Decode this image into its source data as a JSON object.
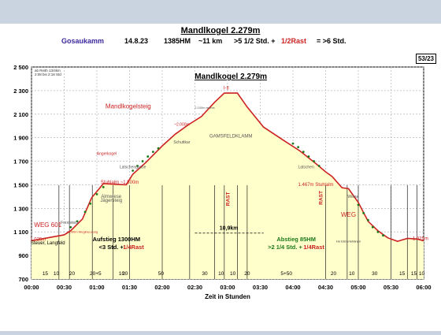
{
  "header": {
    "title": "Mandlkogel 2.279m",
    "region": "Gosaukamm",
    "date": "14.8.23",
    "elevation_gain": "1385HM",
    "distance": "~11 km",
    "time_part1": ">5 1/2 Std. +",
    "time_part2": "1/2Rast",
    "time_part3": "= >6 Std.",
    "page_ref": "53/23",
    "note1": "ab Reith 13/4km",
    "note2": "2:08 bis 2:18 Std"
  },
  "colors": {
    "profile_line": "#cc2222",
    "fill": "#ffffcc",
    "dots": "#1a7a1a",
    "background": "#ffffff",
    "page_bg": "#c9d4e0"
  },
  "chart_data": {
    "type": "area",
    "title": "Mandlkogel 2.279m",
    "xlabel": "Zeit in Stunden",
    "ylabel": "",
    "xlim": [
      0,
      6
    ],
    "ylim": [
      700,
      2500
    ],
    "x_ticks": [
      "00:00",
      "00:30",
      "01:00",
      "01:30",
      "02:00",
      "02:30",
      "03:00",
      "03:30",
      "04:00",
      "04:30",
      "05:00",
      "05:30",
      "06:00"
    ],
    "y_ticks": [
      "700",
      "900",
      "1 100",
      "1 300",
      "1 500",
      "1 700",
      "1 900",
      "2 100",
      "2 300",
      "2 500"
    ],
    "profile": [
      {
        "t": 0.0,
        "e": 1025
      },
      {
        "t": 0.15,
        "e": 1040
      },
      {
        "t": 0.35,
        "e": 1060
      },
      {
        "t": 0.5,
        "e": 1075
      },
      {
        "t": 0.6,
        "e": 1110
      },
      {
        "t": 0.78,
        "e": 1210
      },
      {
        "t": 0.92,
        "e": 1390
      },
      {
        "t": 1.1,
        "e": 1510
      },
      {
        "t": 1.25,
        "e": 1505
      },
      {
        "t": 1.45,
        "e": 1500
      },
      {
        "t": 1.55,
        "e": 1590
      },
      {
        "t": 1.75,
        "e": 1690
      },
      {
        "t": 2.0,
        "e": 1830
      },
      {
        "t": 2.2,
        "e": 1930
      },
      {
        "t": 2.4,
        "e": 2010
      },
      {
        "t": 2.6,
        "e": 2080
      },
      {
        "t": 2.8,
        "e": 2200
      },
      {
        "t": 2.95,
        "e": 2279
      },
      {
        "t": 3.15,
        "e": 2279
      },
      {
        "t": 3.3,
        "e": 2160
      },
      {
        "t": 3.55,
        "e": 1990
      },
      {
        "t": 3.85,
        "e": 1880
      },
      {
        "t": 4.1,
        "e": 1790
      },
      {
        "t": 4.35,
        "e": 1680
      },
      {
        "t": 4.5,
        "e": 1610
      },
      {
        "t": 4.6,
        "e": 1570
      },
      {
        "t": 4.75,
        "e": 1475
      },
      {
        "t": 4.85,
        "e": 1467
      },
      {
        "t": 5.0,
        "e": 1350
      },
      {
        "t": 5.15,
        "e": 1190
      },
      {
        "t": 5.3,
        "e": 1110
      },
      {
        "t": 5.45,
        "e": 1050
      },
      {
        "t": 5.6,
        "e": 1020
      },
      {
        "t": 5.75,
        "e": 1045
      },
      {
        "t": 5.9,
        "e": 1040
      },
      {
        "t": 6.0,
        "e": 1025
      }
    ],
    "dots": [
      {
        "t": 0.6,
        "e": 1140
      },
      {
        "t": 0.7,
        "e": 1190
      },
      {
        "t": 0.82,
        "e": 1270
      },
      {
        "t": 0.9,
        "e": 1340
      },
      {
        "t": 1.0,
        "e": 1420
      },
      {
        "t": 1.1,
        "e": 1480
      },
      {
        "t": 1.55,
        "e": 1620
      },
      {
        "t": 1.62,
        "e": 1660
      },
      {
        "t": 1.7,
        "e": 1700
      },
      {
        "t": 1.78,
        "e": 1740
      },
      {
        "t": 1.86,
        "e": 1780
      },
      {
        "t": 1.94,
        "e": 1810
      },
      {
        "t": 4.0,
        "e": 1850
      },
      {
        "t": 4.08,
        "e": 1820
      },
      {
        "t": 4.16,
        "e": 1780
      },
      {
        "t": 4.24,
        "e": 1740
      },
      {
        "t": 4.32,
        "e": 1700
      },
      {
        "t": 4.4,
        "e": 1660
      },
      {
        "t": 5.0,
        "e": 1330
      },
      {
        "t": 5.08,
        "e": 1260
      },
      {
        "t": 5.15,
        "e": 1200
      },
      {
        "t": 5.22,
        "e": 1140
      },
      {
        "t": 5.3,
        "e": 1100
      },
      {
        "t": 5.38,
        "e": 1070
      }
    ],
    "dividers": [
      0.42,
      0.58,
      0.93,
      1.25,
      1.5,
      2.0,
      2.42,
      2.8,
      2.95,
      3.15,
      3.3,
      4.5,
      4.83,
      5.0,
      5.5,
      5.75,
      5.9
    ],
    "segment_minutes": [
      {
        "t": 0.21,
        "v": "15"
      },
      {
        "t": 0.38,
        "v": "10"
      },
      {
        "t": 0.62,
        "v": "20"
      },
      {
        "t": 0.98,
        "v": "20+5"
      },
      {
        "t": 1.38,
        "v": "10"
      },
      {
        "t": 1.43,
        "v": "20"
      },
      {
        "t": 1.98,
        "v": "50"
      },
      {
        "t": 2.65,
        "v": "30"
      },
      {
        "t": 2.9,
        "v": "10"
      },
      {
        "t": 3.08,
        "v": "10"
      },
      {
        "t": 3.3,
        "v": "20"
      },
      {
        "t": 3.9,
        "v": "5+50"
      },
      {
        "t": 4.62,
        "v": "20"
      },
      {
        "t": 4.9,
        "v": "10"
      },
      {
        "t": 5.25,
        "v": "30"
      },
      {
        "t": 5.67,
        "v": "15"
      },
      {
        "t": 5.85,
        "v": "15"
      },
      {
        "t": 5.97,
        "v": "10"
      }
    ],
    "annotations": [
      {
        "t": 1.48,
        "e": 2150,
        "text": "Mandlkogelsteig",
        "color": "#cc2222",
        "size": 8
      },
      {
        "t": 4.85,
        "e": 1230,
        "text": "WEG",
        "color": "#cc2222",
        "size": 8
      },
      {
        "t": 0.25,
        "e": 1140,
        "text": "WEG 601",
        "color": "#cc2222",
        "size": 8
      },
      {
        "t": 3.05,
        "e": 1900,
        "text": "GAMSFELDKLAMM",
        "color": "#555555",
        "size": 6
      },
      {
        "t": 1.35,
        "e": 1510,
        "text": "Stuhlalm ~1.500m",
        "color": "#cc2222",
        "size": 6
      },
      {
        "t": 1.22,
        "e": 1355,
        "text": "Jägersteig",
        "color": "#555555",
        "size": 6
      },
      {
        "t": 1.22,
        "e": 1390,
        "text": "Almwiese",
        "color": "#555555",
        "size": 6
      },
      {
        "t": 1.55,
        "e": 1640,
        "text": "Latschengasse",
        "color": "#555555",
        "size": 5
      },
      {
        "t": 1.15,
        "e": 1755,
        "text": "Angerkogel",
        "color": "#cc2222",
        "size": 5
      },
      {
        "t": 2.3,
        "e": 2000,
        "text": "~2.000m",
        "color": "#cc2222",
        "size": 5
      },
      {
        "t": 2.3,
        "e": 1850,
        "text": "Schuttkar",
        "color": "#555555",
        "size": 5
      },
      {
        "t": 4.2,
        "e": 1640,
        "text": "Latschen",
        "color": "#555555",
        "size": 5
      },
      {
        "t": 4.35,
        "e": 1490,
        "text": "1.467m Stuhlalm",
        "color": "#cc2222",
        "size": 6
      },
      {
        "t": 4.92,
        "e": 1390,
        "text": "Wiese",
        "color": "#555555",
        "size": 5
      },
      {
        "t": 4.85,
        "e": 1010,
        "text": "Ho Ebnerlehänen",
        "color": "#333333",
        "size": 4
      },
      {
        "t": 0.25,
        "e": 995,
        "text": "Steuer, Langfeld",
        "color": "#000000",
        "size": 6
      },
      {
        "t": 0.1,
        "e": 1025,
        "text": "1.025m",
        "color": "#cc2222",
        "size": 6
      },
      {
        "t": 5.95,
        "e": 1030,
        "text": "1.025m",
        "color": "#cc2222",
        "size": 6
      },
      {
        "t": 2.98,
        "e": 2310,
        "text": "I-II",
        "color": "#cc2222",
        "size": 6
      },
      {
        "t": 2.65,
        "e": 2145,
        "text": "2.100m rechts",
        "color": "#555555",
        "size": 4
      },
      {
        "t": 0.78,
        "e": 1090,
        "text": "1.090m Wegkreuzung",
        "color": "#cc2222",
        "size": 4
      },
      {
        "t": 0.58,
        "e": 1170,
        "text": "Forststeig",
        "color": "#555555",
        "size": 5
      }
    ],
    "rast_labels": [
      {
        "t": 3.03,
        "e": 1380
      },
      {
        "t": 4.45,
        "e": 1390
      }
    ],
    "peak_label": {
      "t": 3.05,
      "e": 2400,
      "text": "Mandlkogel 2.279m"
    },
    "distance_label": "10,9km",
    "ascent_label": "Aufstieg 1300HM",
    "ascent_time": "<3 Std. +",
    "ascent_rast": "1/4Rast",
    "descent_label": "Abstieg 85HM",
    "descent_time": ">2 1/4 Std. +",
    "descent_rast": "1/4Rast",
    "grid": true
  }
}
